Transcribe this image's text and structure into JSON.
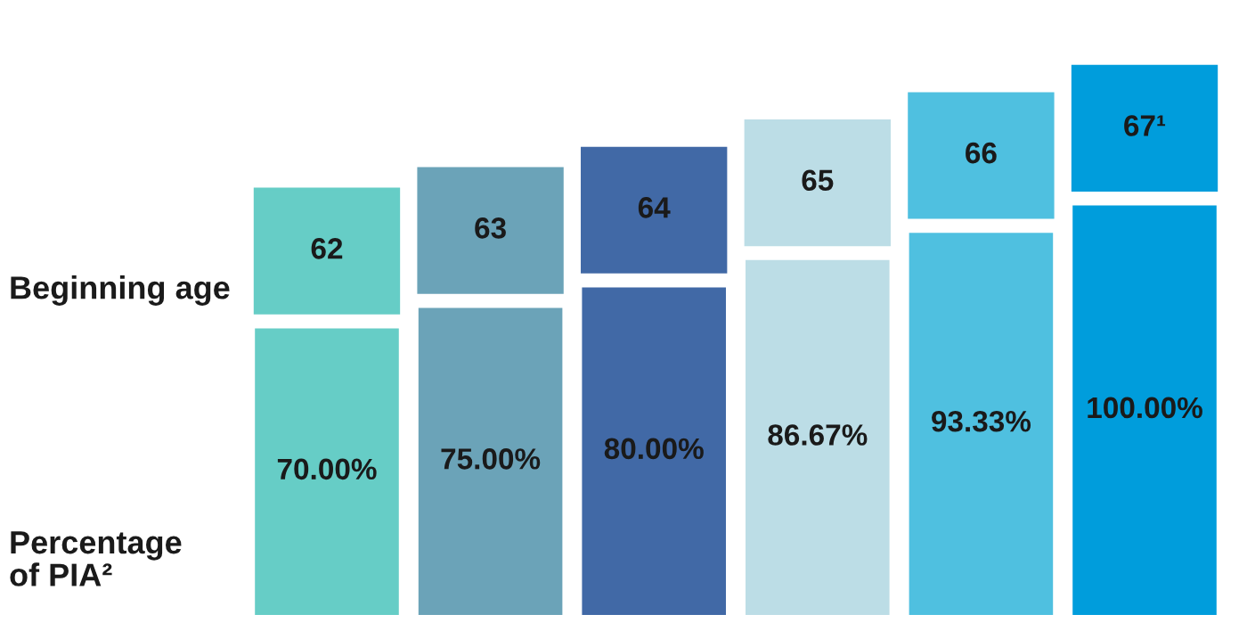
{
  "chart_data": {
    "type": "bar",
    "categories": [
      "62",
      "63",
      "64",
      "65",
      "66",
      "67¹"
    ],
    "values": [
      70.0,
      75.0,
      80.0,
      86.67,
      93.33,
      100.0
    ],
    "value_labels": [
      "70.00%",
      "75.00%",
      "80.00%",
      "86.67%",
      "93.33%",
      "100.00%"
    ],
    "colors": [
      "#66cdc6",
      "#6ba3b8",
      "#4169a6",
      "#bcdde6",
      "#4fc0e0",
      "#009ddc"
    ],
    "annotations": [
      "Beginning age",
      "Percentage\nof PIA²"
    ]
  }
}
